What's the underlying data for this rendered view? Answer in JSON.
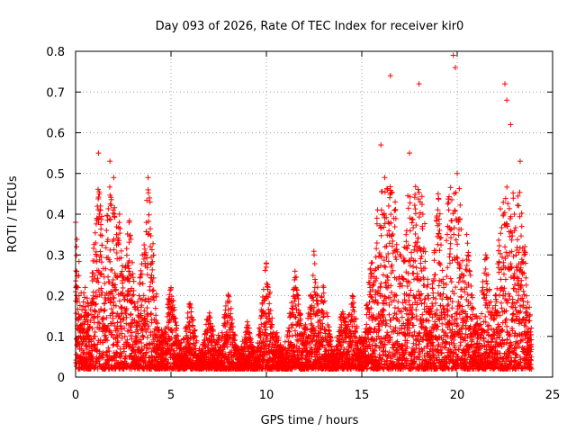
{
  "chart_data": {
    "type": "scatter",
    "title": "Day 093 of 2026, Rate Of TEC Index for receiver kir0",
    "xlabel": "GPS time / hours",
    "ylabel": "ROTI / TECUs",
    "xlim": [
      0,
      25
    ],
    "ylim": [
      0,
      0.8
    ],
    "xticks": [
      0,
      5,
      10,
      15,
      20,
      25
    ],
    "xtick_labels": [
      "0",
      "5",
      "10",
      "15",
      "20",
      "25"
    ],
    "yticks": [
      0,
      0.1,
      0.2,
      0.3,
      0.4,
      0.5,
      0.6,
      0.7,
      0.8
    ],
    "ytick_labels": [
      "0",
      "0.1",
      "0.2",
      "0.3",
      "0.4",
      "0.5",
      "0.6",
      "0.7",
      "0.8"
    ],
    "grid": true,
    "marker": "+",
    "color": "#ff0000",
    "series": [
      {
        "name": "ROTI",
        "x": [
          0.0,
          0.05,
          0.1,
          0.2,
          0.3,
          0.5,
          0.7,
          1.0,
          1.2,
          1.25,
          1.3,
          1.5,
          1.8,
          2.0,
          2.2,
          2.3,
          2.5,
          2.8,
          3.0,
          3.5,
          3.8,
          3.9,
          4.0,
          4.2,
          4.5,
          5.0,
          5.5,
          6.0,
          6.5,
          7.0,
          7.5,
          8.0,
          8.5,
          9.0,
          9.5,
          10.0,
          10.5,
          11.0,
          11.5,
          12.0,
          12.5,
          12.7,
          13.0,
          13.5,
          14.0,
          14.5,
          15.0,
          15.5,
          16.0,
          16.2,
          16.5,
          17.0,
          17.5,
          18.0,
          18.2,
          18.5,
          19.0,
          19.5,
          19.8,
          19.9,
          20.0,
          20.5,
          21.0,
          21.5,
          22.0,
          22.5,
          22.6,
          22.8,
          23.0,
          23.3,
          23.5,
          23.8
        ],
        "y": [
          0.38,
          0.2,
          0.12,
          0.08,
          0.15,
          0.22,
          0.06,
          0.25,
          0.55,
          0.45,
          0.3,
          0.18,
          0.53,
          0.49,
          0.12,
          0.4,
          0.2,
          0.38,
          0.08,
          0.3,
          0.49,
          0.43,
          0.28,
          0.05,
          0.1,
          0.22,
          0.07,
          0.18,
          0.05,
          0.15,
          0.09,
          0.2,
          0.04,
          0.12,
          0.06,
          0.28,
          0.1,
          0.07,
          0.26,
          0.12,
          0.3,
          0.09,
          0.22,
          0.05,
          0.16,
          0.2,
          0.08,
          0.28,
          0.57,
          0.49,
          0.74,
          0.3,
          0.55,
          0.72,
          0.4,
          0.2,
          0.45,
          0.1,
          0.79,
          0.76,
          0.5,
          0.35,
          0.15,
          0.3,
          0.2,
          0.72,
          0.68,
          0.62,
          0.4,
          0.53,
          0.3,
          0.15
        ]
      }
    ]
  }
}
